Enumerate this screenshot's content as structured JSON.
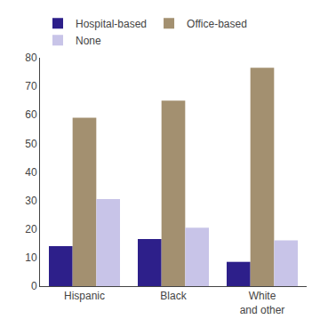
{
  "chart_data": {
    "type": "bar",
    "categories": [
      "Hispanic",
      "Black",
      "White\nand other"
    ],
    "series": [
      {
        "name": "Hospital-based",
        "color": "#2d1f8a",
        "values": [
          14,
          16.5,
          8.5
        ]
      },
      {
        "name": "Office-based",
        "color": "#a39070",
        "values": [
          59,
          65,
          76.5
        ]
      },
      {
        "name": "None",
        "color": "#c8c4e8",
        "values": [
          30.5,
          20.5,
          16
        ]
      }
    ],
    "ylim": [
      0,
      80
    ],
    "yticks": [
      0,
      10,
      20,
      30,
      40,
      50,
      60,
      70,
      80
    ],
    "grid": false,
    "legend": "top"
  }
}
